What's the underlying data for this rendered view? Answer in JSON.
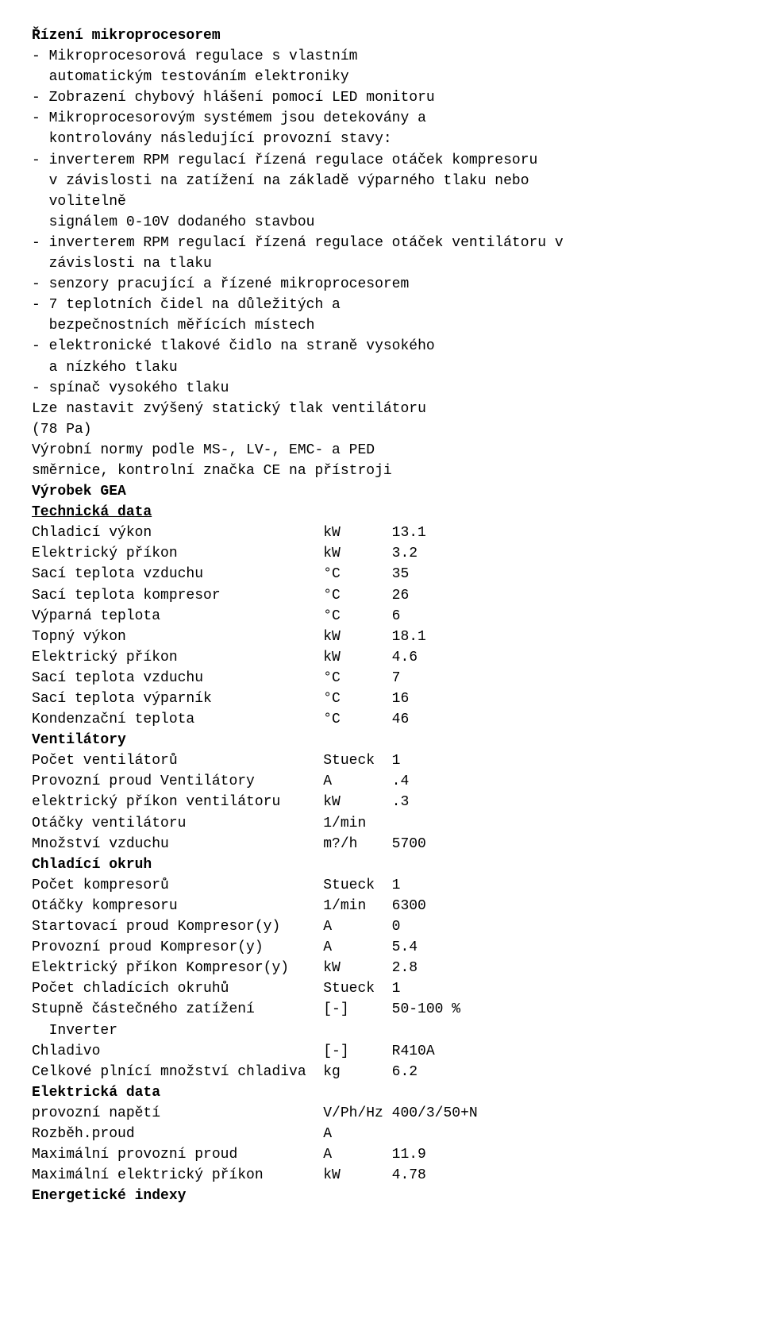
{
  "heading": "Řízení mikroprocesorem",
  "bullets": [
    "- Mikroprocesorová regulace s vlastním",
    "  automatickým testováním elektroniky",
    "- Zobrazení chybový hlášení pomocí LED monitoru",
    "- Mikroprocesorovým systémem jsou detekovány a",
    "  kontrolovány následující provozní stavy:",
    "- inverterem RPM regulací řízená regulace otáček kompresoru",
    "  v závislosti na zatížení na základě výparného tlaku nebo",
    "  volitelně",
    "  signálem 0-10V dodaného stavbou",
    "- inverterem RPM regulací řízená regulace otáček ventilátoru v",
    "  závislosti na tlaku",
    "- senzory pracující a řízené mikroprocesorem",
    "- 7 teplotních čidel na důležitých a",
    "  bezpečnostních měřících místech",
    "- elektronické tlakové čidlo na straně vysokého",
    "  a nízkého tlaku",
    "- spínač vysokého tlaku",
    "Lze nastavit zvýšený statický tlak ventilátoru",
    "(78 Pa)",
    "Výrobní normy podle MS-, LV-, EMC- a PED",
    "směrnice, kontrolní značka CE na přístroji"
  ],
  "section_product": "Výrobek GEA",
  "section_techdata": "Technická data",
  "tech_rows": [
    {
      "label": "Chladicí výkon",
      "unit": "kW",
      "value": "13.1"
    },
    {
      "label": "Elektrický příkon",
      "unit": "kW",
      "value": "3.2"
    },
    {
      "label": "Sací teplota vzduchu",
      "unit": "°C",
      "value": "35"
    },
    {
      "label": "Sací teplota kompresor",
      "unit": "°C",
      "value": "26"
    },
    {
      "label": "Výparná teplota",
      "unit": "°C",
      "value": "6"
    },
    {
      "label": "Topný výkon",
      "unit": "kW",
      "value": "18.1"
    },
    {
      "label": "Elektrický příkon",
      "unit": "kW",
      "value": "4.6"
    },
    {
      "label": "Sací teplota vzduchu",
      "unit": "°C",
      "value": "7"
    },
    {
      "label": "Sací teplota výparník",
      "unit": "°C",
      "value": "16"
    },
    {
      "label": "Kondenzační teplota",
      "unit": "°C",
      "value": "46"
    }
  ],
  "section_fans": "Ventilátory",
  "fan_rows": [
    {
      "label": "Počet ventilátorů",
      "unit": "Stueck",
      "value": "1"
    },
    {
      "label": "Provozní proud Ventilátory",
      "unit": "A",
      "value": ".4"
    },
    {
      "label": "elektrický příkon ventilátoru",
      "unit": "kW",
      "value": ".3"
    },
    {
      "label": "Otáčky ventilátoru",
      "unit": "1/min",
      "value": ""
    },
    {
      "label": "Množství vzduchu",
      "unit": "m?/h",
      "value": "5700"
    }
  ],
  "section_cooling": "Chladící okruh",
  "cool_rows": [
    {
      "label": "Počet kompresorů",
      "unit": "Stueck",
      "value": "1"
    },
    {
      "label": "Otáčky kompresoru",
      "unit": "1/min",
      "value": "6300"
    },
    {
      "label": "Startovací proud Kompresor(y)",
      "unit": "A",
      "value": "0"
    },
    {
      "label": "Provozní proud Kompresor(y)",
      "unit": "A",
      "value": "5.4"
    },
    {
      "label": "Elektrický příkon Kompresor(y)",
      "unit": "kW",
      "value": "2.8"
    },
    {
      "label": "Počet chladících okruhů",
      "unit": "Stueck",
      "value": "1"
    },
    {
      "label": "Stupně částečného zatížení",
      "unit": "[-]",
      "value": "50-100 %"
    }
  ],
  "inverter_line": "  Inverter",
  "cool_rows2": [
    {
      "label": "Chladivo",
      "unit": "[-]",
      "value": "R410A"
    },
    {
      "label": "Celkové plnící množství chladiva",
      "unit": "kg",
      "value": "6.2"
    }
  ],
  "section_electrical": "Elektrická data",
  "elec_rows": [
    {
      "label": "provozní napětí",
      "unit": "V/Ph/Hz",
      "value": "400/3/50+N"
    },
    {
      "label": "Rozběh.proud",
      "unit": "A",
      "value": ""
    },
    {
      "label": "Maximální provozní proud",
      "unit": "A",
      "value": "11.9"
    },
    {
      "label": "Maximální elektrický příkon",
      "unit": "kW",
      "value": "4.78"
    }
  ],
  "section_energy": "Energetické indexy"
}
